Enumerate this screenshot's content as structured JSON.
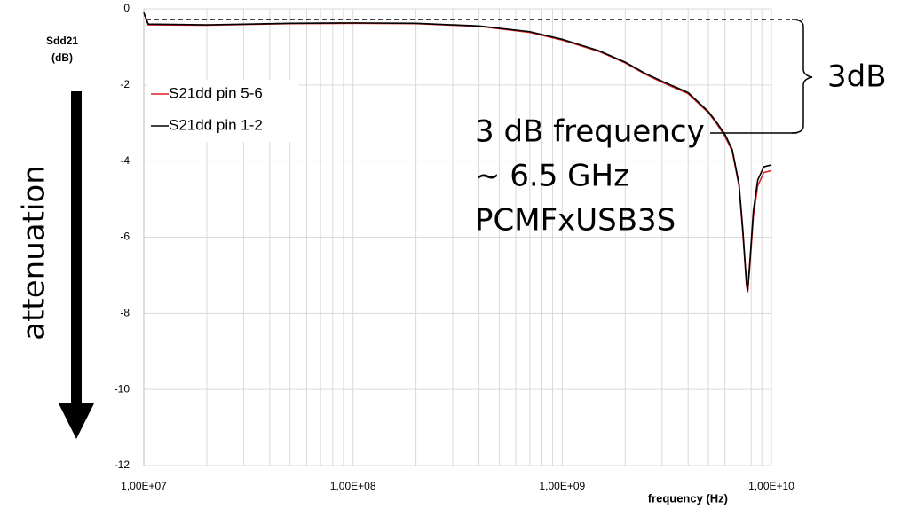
{
  "chart_data": {
    "type": "line",
    "ylabel": [
      "Sdd21",
      "(dB)"
    ],
    "xlabel": "frequency (Hz)",
    "log_x": true,
    "grid": true,
    "legend": "upper left",
    "xlim": [
      10000000,
      10000000000
    ],
    "ylim": [
      -12,
      0
    ],
    "xticks": [
      {
        "value": 10000000,
        "label": "1,00E+07"
      },
      {
        "value": 100000000,
        "label": "1,00E+08"
      },
      {
        "value": 1000000000,
        "label": "1,00E+09"
      },
      {
        "value": 10000000000,
        "label": "1,00E+10"
      }
    ],
    "yticks": [
      0,
      -2,
      -4,
      -6,
      -8,
      -10,
      -12
    ],
    "x": [
      10000000,
      10500000,
      20000000,
      50000000,
      100000000,
      200000000,
      400000000,
      700000000,
      1000000000,
      1500000000,
      2000000000,
      2500000000,
      3000000000,
      4000000000,
      5000000000,
      5500000000,
      6000000000,
      6500000000,
      7000000000,
      7300000000,
      7600000000,
      7700000000,
      7900000000,
      8200000000,
      8600000000,
      9200000000,
      10000000000
    ],
    "series": [
      {
        "name": "S21dd pin 5-6",
        "color": "#e02020",
        "values": [
          -0.1,
          -0.42,
          -0.43,
          -0.39,
          -0.38,
          -0.39,
          -0.46,
          -0.62,
          -0.82,
          -1.12,
          -1.42,
          -1.72,
          -1.93,
          -2.23,
          -2.73,
          -3.03,
          -3.35,
          -3.75,
          -4.65,
          -5.9,
          -7.25,
          -7.45,
          -6.7,
          -5.45,
          -4.65,
          -4.3,
          -4.25
        ]
      },
      {
        "name": "S21dd pin 1-2",
        "color": "#000000",
        "values": [
          -0.1,
          -0.4,
          -0.42,
          -0.38,
          -0.37,
          -0.38,
          -0.45,
          -0.6,
          -0.8,
          -1.1,
          -1.4,
          -1.7,
          -1.9,
          -2.2,
          -2.7,
          -3.0,
          -3.3,
          -3.7,
          -4.6,
          -5.8,
          -7.2,
          -7.4,
          -6.6,
          -5.3,
          -4.5,
          -4.15,
          -4.1
        ]
      }
    ],
    "annotations": [
      "3dB",
      "3 dB frequency",
      "~ 6.5 GHz",
      "PCMFxUSB3S",
      "attenuation"
    ]
  }
}
